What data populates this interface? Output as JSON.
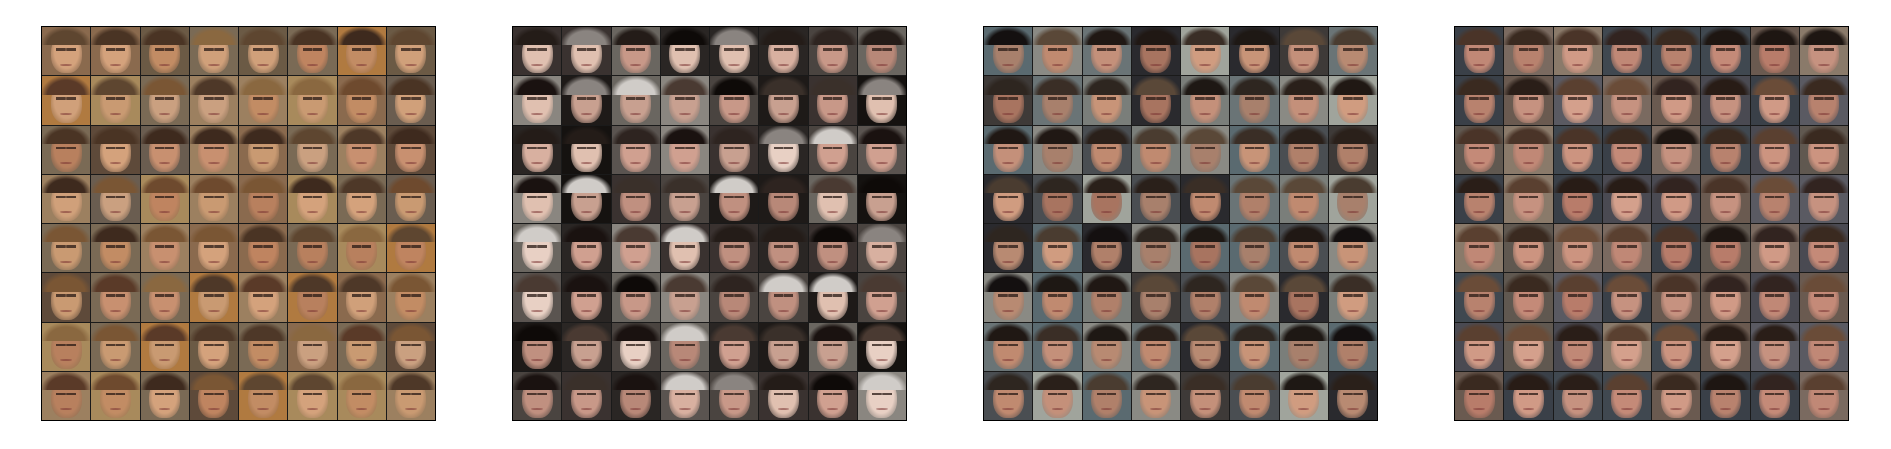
{
  "figure": {
    "panels": [
      {
        "id": "panel-1",
        "grid": {
          "rows": 8,
          "cols": 8
        },
        "palette": {
          "backgrounds": [
            "#8a6a4e",
            "#6b5a45",
            "#9c8060",
            "#5e4a3a",
            "#a88a5c",
            "#7a6a55",
            "#b07a40",
            "#6a5d50"
          ],
          "skin": [
            "#c89070",
            "#d0a07a",
            "#b8805e",
            "#caa080",
            "#c28c64",
            "#d4a27c",
            "#bf8460",
            "#c99a72"
          ],
          "hair": [
            "#5a3a28",
            "#6e4a2e",
            "#4a3424",
            "#7a5634",
            "#3e2a1e",
            "#8a6840",
            "#5e4630",
            "#4e3828"
          ]
        }
      },
      {
        "id": "panel-2",
        "grid": {
          "rows": 8,
          "cols": 8
        },
        "palette": {
          "backgrounds": [
            "#1e1a18",
            "#3a3230",
            "#6a6660",
            "#2a2624",
            "#4a4440",
            "#8a8680",
            "#151210",
            "#5a5450"
          ],
          "skin": [
            "#d0a090",
            "#c89888",
            "#e0c0b0",
            "#b88878",
            "#d8b0a0",
            "#c09080",
            "#e8d0c4",
            "#c8a090"
          ],
          "hair": [
            "#1a1210",
            "#2e2420",
            "#0e0a08",
            "#3a302a",
            "#8a8480",
            "#241c18",
            "#d0ccc8",
            "#4a3a32"
          ]
        }
      },
      {
        "id": "panel-3",
        "grid": {
          "rows": 8,
          "cols": 8
        },
        "palette": {
          "backgrounds": [
            "#2a2a2e",
            "#5a6a70",
            "#8a8a84",
            "#3e3a38",
            "#6a7476",
            "#a0a49c",
            "#4a4e52",
            "#7a7e7a"
          ],
          "skin": [
            "#c08a70",
            "#b0806a",
            "#c89478",
            "#a87460",
            "#d09c80",
            "#b88a72",
            "#c4907a",
            "#a8806c"
          ],
          "hair": [
            "#1e1814",
            "#2e2620",
            "#3a2e26",
            "#141010",
            "#4a3c30",
            "#2a201a",
            "#5a4838",
            "#201814"
          ]
        }
      },
      {
        "id": "panel-4",
        "grid": {
          "rows": 8,
          "cols": 8
        },
        "palette": {
          "backgrounds": [
            "#4a4a52",
            "#6a5a50",
            "#3a4048",
            "#7a6a60",
            "#5a5a62",
            "#8a7a6a",
            "#404850",
            "#605850"
          ],
          "skin": [
            "#c48a78",
            "#cc9480",
            "#b87c6a",
            "#d09a86",
            "#c08876",
            "#b8826e",
            "#d4a08c",
            "#c69280"
          ],
          "hair": [
            "#2a1e18",
            "#3a2a20",
            "#4a3428",
            "#1e1612",
            "#5a4030",
            "#322420",
            "#6a4c38",
            "#281c16"
          ]
        }
      }
    ]
  }
}
